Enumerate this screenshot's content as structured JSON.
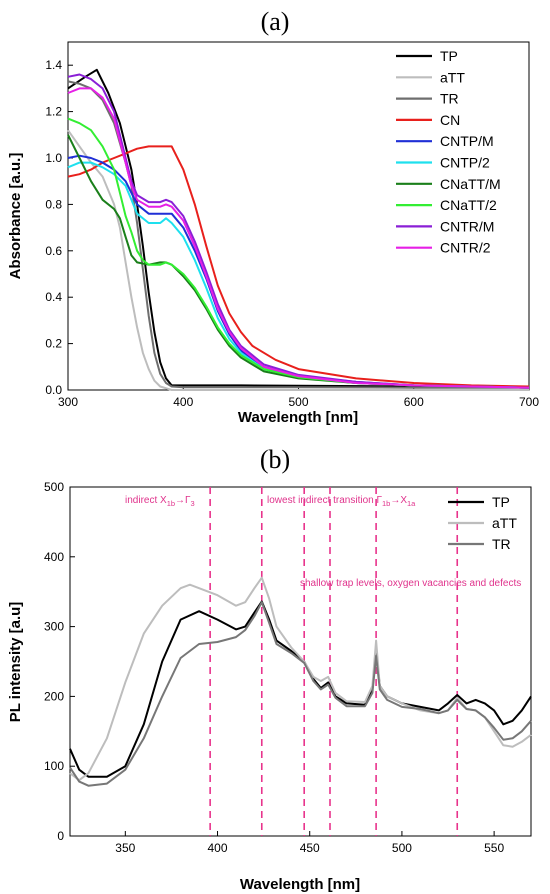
{
  "chart_data": [
    {
      "panel_label": "(a)",
      "type": "line",
      "xlabel": "Wavelength [nm]",
      "ylabel": "Absorbance [a.u.]",
      "xlim": [
        300,
        700
      ],
      "ylim": [
        0.0,
        1.5
      ],
      "xticks": [
        "300",
        "400",
        "500",
        "600",
        "700"
      ],
      "yticks": [
        "0.0",
        "0.2",
        "0.4",
        "0.6",
        "0.8",
        "1.0",
        "1.2",
        "1.4"
      ],
      "legend_position": "top-right",
      "series": [
        {
          "name": "TP",
          "color": "#000000",
          "x": [
            300,
            315,
            325,
            335,
            345,
            355,
            360,
            365,
            370,
            375,
            380,
            385,
            390,
            400,
            450,
            500,
            600,
            700
          ],
          "y": [
            1.3,
            1.35,
            1.38,
            1.28,
            1.15,
            0.95,
            0.8,
            0.62,
            0.42,
            0.25,
            0.12,
            0.05,
            0.02,
            0.02,
            0.02,
            0.018,
            0.015,
            0.012
          ]
        },
        {
          "name": "aTT",
          "color": "#bdbdbd",
          "x": [
            300,
            310,
            320,
            330,
            340,
            345,
            350,
            355,
            360,
            365,
            370,
            375,
            380,
            390,
            400,
            500,
            600,
            700
          ],
          "y": [
            1.12,
            1.05,
            0.98,
            0.92,
            0.8,
            0.7,
            0.55,
            0.4,
            0.27,
            0.16,
            0.09,
            0.04,
            0.015,
            0.0,
            0.0,
            0.0,
            0.0,
            0.0
          ]
        },
        {
          "name": "TR",
          "color": "#6e6e6e",
          "x": [
            300,
            310,
            320,
            330,
            340,
            350,
            355,
            360,
            365,
            370,
            375,
            380,
            385,
            390,
            400,
            500,
            600,
            700
          ],
          "y": [
            1.33,
            1.32,
            1.3,
            1.25,
            1.15,
            0.98,
            0.88,
            0.72,
            0.52,
            0.32,
            0.16,
            0.07,
            0.03,
            0.015,
            0.012,
            0.012,
            0.01,
            0.01
          ]
        },
        {
          "name": "CN",
          "color": "#e8201c",
          "x": [
            300,
            310,
            320,
            330,
            340,
            350,
            360,
            370,
            380,
            390,
            400,
            410,
            420,
            430,
            440,
            450,
            460,
            480,
            500,
            550,
            600,
            650,
            700
          ],
          "y": [
            0.92,
            0.93,
            0.95,
            0.98,
            1.0,
            1.02,
            1.04,
            1.05,
            1.05,
            1.05,
            0.95,
            0.8,
            0.62,
            0.45,
            0.33,
            0.25,
            0.19,
            0.13,
            0.09,
            0.05,
            0.03,
            0.02,
            0.015
          ]
        },
        {
          "name": "CNTP/M",
          "color": "#1f2fd6",
          "x": [
            300,
            310,
            320,
            330,
            340,
            350,
            355,
            360,
            370,
            380,
            390,
            400,
            410,
            420,
            430,
            440,
            450,
            470,
            500,
            550,
            600,
            700
          ],
          "y": [
            1.0,
            1.01,
            1.0,
            0.98,
            0.95,
            0.9,
            0.85,
            0.8,
            0.76,
            0.76,
            0.76,
            0.7,
            0.6,
            0.48,
            0.34,
            0.24,
            0.17,
            0.1,
            0.06,
            0.035,
            0.02,
            0.01
          ]
        },
        {
          "name": "CNTP/2",
          "color": "#1ee0ee",
          "x": [
            300,
            310,
            320,
            330,
            340,
            350,
            355,
            360,
            370,
            380,
            385,
            390,
            400,
            410,
            420,
            430,
            440,
            450,
            470,
            500,
            550,
            600,
            700
          ],
          "y": [
            0.96,
            0.98,
            0.98,
            0.96,
            0.93,
            0.88,
            0.82,
            0.76,
            0.72,
            0.72,
            0.74,
            0.72,
            0.66,
            0.56,
            0.44,
            0.31,
            0.22,
            0.16,
            0.09,
            0.055,
            0.03,
            0.02,
            0.01
          ]
        },
        {
          "name": "CNaTT/M",
          "color": "#1a7f1a",
          "x": [
            300,
            310,
            320,
            330,
            340,
            345,
            350,
            355,
            360,
            370,
            380,
            385,
            390,
            400,
            410,
            420,
            430,
            440,
            450,
            470,
            500,
            550,
            600,
            700
          ],
          "y": [
            1.1,
            1.0,
            0.9,
            0.82,
            0.78,
            0.74,
            0.66,
            0.58,
            0.55,
            0.54,
            0.55,
            0.55,
            0.54,
            0.49,
            0.43,
            0.35,
            0.26,
            0.19,
            0.14,
            0.08,
            0.05,
            0.03,
            0.02,
            0.01
          ]
        },
        {
          "name": "CNaTT/2",
          "color": "#33ee33",
          "x": [
            300,
            310,
            320,
            330,
            340,
            345,
            350,
            355,
            360,
            365,
            370,
            380,
            385,
            390,
            400,
            410,
            420,
            430,
            440,
            450,
            470,
            500,
            550,
            600,
            700
          ],
          "y": [
            1.17,
            1.15,
            1.12,
            1.05,
            0.95,
            0.85,
            0.75,
            0.68,
            0.6,
            0.56,
            0.54,
            0.54,
            0.55,
            0.54,
            0.5,
            0.44,
            0.36,
            0.27,
            0.2,
            0.15,
            0.09,
            0.055,
            0.03,
            0.02,
            0.01
          ]
        },
        {
          "name": "CNTR/M",
          "color": "#8a1fd6",
          "x": [
            300,
            310,
            320,
            330,
            340,
            350,
            355,
            360,
            370,
            380,
            385,
            390,
            400,
            410,
            420,
            430,
            440,
            450,
            470,
            500,
            550,
            600,
            700
          ],
          "y": [
            1.35,
            1.36,
            1.34,
            1.3,
            1.2,
            1.0,
            0.9,
            0.84,
            0.81,
            0.81,
            0.82,
            0.81,
            0.75,
            0.64,
            0.51,
            0.37,
            0.26,
            0.19,
            0.11,
            0.065,
            0.035,
            0.02,
            0.01
          ]
        },
        {
          "name": "CNTR/2",
          "color": "#e61fe6",
          "x": [
            300,
            310,
            320,
            330,
            340,
            350,
            355,
            360,
            370,
            380,
            385,
            390,
            400,
            410,
            420,
            430,
            440,
            450,
            470,
            500,
            550,
            600,
            700
          ],
          "y": [
            1.28,
            1.3,
            1.3,
            1.26,
            1.17,
            0.98,
            0.88,
            0.82,
            0.79,
            0.79,
            0.8,
            0.79,
            0.73,
            0.62,
            0.49,
            0.35,
            0.25,
            0.18,
            0.1,
            0.06,
            0.03,
            0.02,
            0.01
          ]
        }
      ]
    },
    {
      "panel_label": "(b)",
      "type": "line",
      "xlabel": "Wavelength [nm]",
      "ylabel": "PL intensity [a.u]",
      "xlim": [
        320,
        570
      ],
      "ylim": [
        0,
        500
      ],
      "xticks": [
        "350",
        "400",
        "450",
        "500",
        "550"
      ],
      "yticks": [
        "0",
        "100",
        "200",
        "300",
        "400",
        "500"
      ],
      "legend_position": "top-right",
      "series": [
        {
          "name": "TP",
          "color": "#000000",
          "x": [
            320,
            325,
            330,
            340,
            350,
            360,
            370,
            380,
            390,
            400,
            410,
            415,
            420,
            424,
            428,
            432,
            440,
            447,
            452,
            456,
            460,
            464,
            470,
            480,
            484,
            486,
            488,
            492,
            500,
            510,
            520,
            525,
            530,
            535,
            540,
            545,
            550,
            555,
            560,
            565,
            570
          ],
          "y": [
            125,
            95,
            85,
            85,
            100,
            160,
            250,
            310,
            322,
            310,
            296,
            300,
            320,
            336,
            310,
            280,
            265,
            250,
            225,
            212,
            220,
            200,
            190,
            188,
            210,
            264,
            215,
            200,
            190,
            185,
            180,
            190,
            202,
            190,
            195,
            190,
            180,
            160,
            165,
            180,
            200
          ]
        },
        {
          "name": "aTT",
          "color": "#bdbdbd",
          "x": [
            320,
            325,
            330,
            340,
            350,
            360,
            370,
            380,
            385,
            390,
            400,
            410,
            415,
            420,
            424,
            428,
            432,
            440,
            447,
            452,
            456,
            460,
            464,
            470,
            480,
            484,
            486,
            488,
            492,
            500,
            510,
            520,
            525,
            530,
            535,
            540,
            545,
            550,
            555,
            560,
            565,
            570
          ],
          "y": [
            90,
            80,
            90,
            140,
            220,
            290,
            330,
            355,
            360,
            355,
            345,
            330,
            335,
            355,
            370,
            340,
            300,
            270,
            250,
            228,
            222,
            228,
            205,
            193,
            192,
            215,
            280,
            215,
            200,
            190,
            180,
            176,
            180,
            198,
            182,
            180,
            170,
            150,
            130,
            128,
            135,
            145
          ]
        },
        {
          "name": "TR",
          "color": "#777777",
          "x": [
            320,
            325,
            330,
            340,
            350,
            360,
            370,
            380,
            390,
            400,
            410,
            415,
            420,
            424,
            428,
            432,
            440,
            447,
            452,
            456,
            460,
            464,
            470,
            480,
            484,
            486,
            488,
            492,
            500,
            510,
            520,
            525,
            530,
            535,
            540,
            545,
            550,
            555,
            560,
            565,
            570
          ],
          "y": [
            98,
            78,
            72,
            75,
            95,
            140,
            200,
            255,
            275,
            278,
            285,
            295,
            315,
            335,
            305,
            275,
            262,
            248,
            222,
            210,
            217,
            198,
            186,
            186,
            205,
            258,
            210,
            195,
            185,
            182,
            176,
            180,
            195,
            182,
            180,
            170,
            155,
            138,
            140,
            150,
            165
          ]
        }
      ],
      "reference_lines": [
        396,
        424,
        447,
        461,
        486,
        530
      ],
      "annotations": [
        {
          "text_main": "indirect X",
          "sub1": "1b",
          "arrow": "→Γ",
          "sub2": "3"
        },
        {
          "text_main": "lowest indirect transition Γ",
          "sub1": "1b",
          "arrow": "→X",
          "sub2": "1a"
        },
        {
          "text": "shallow trap levels, oxygen vacancies and defects"
        }
      ]
    }
  ]
}
